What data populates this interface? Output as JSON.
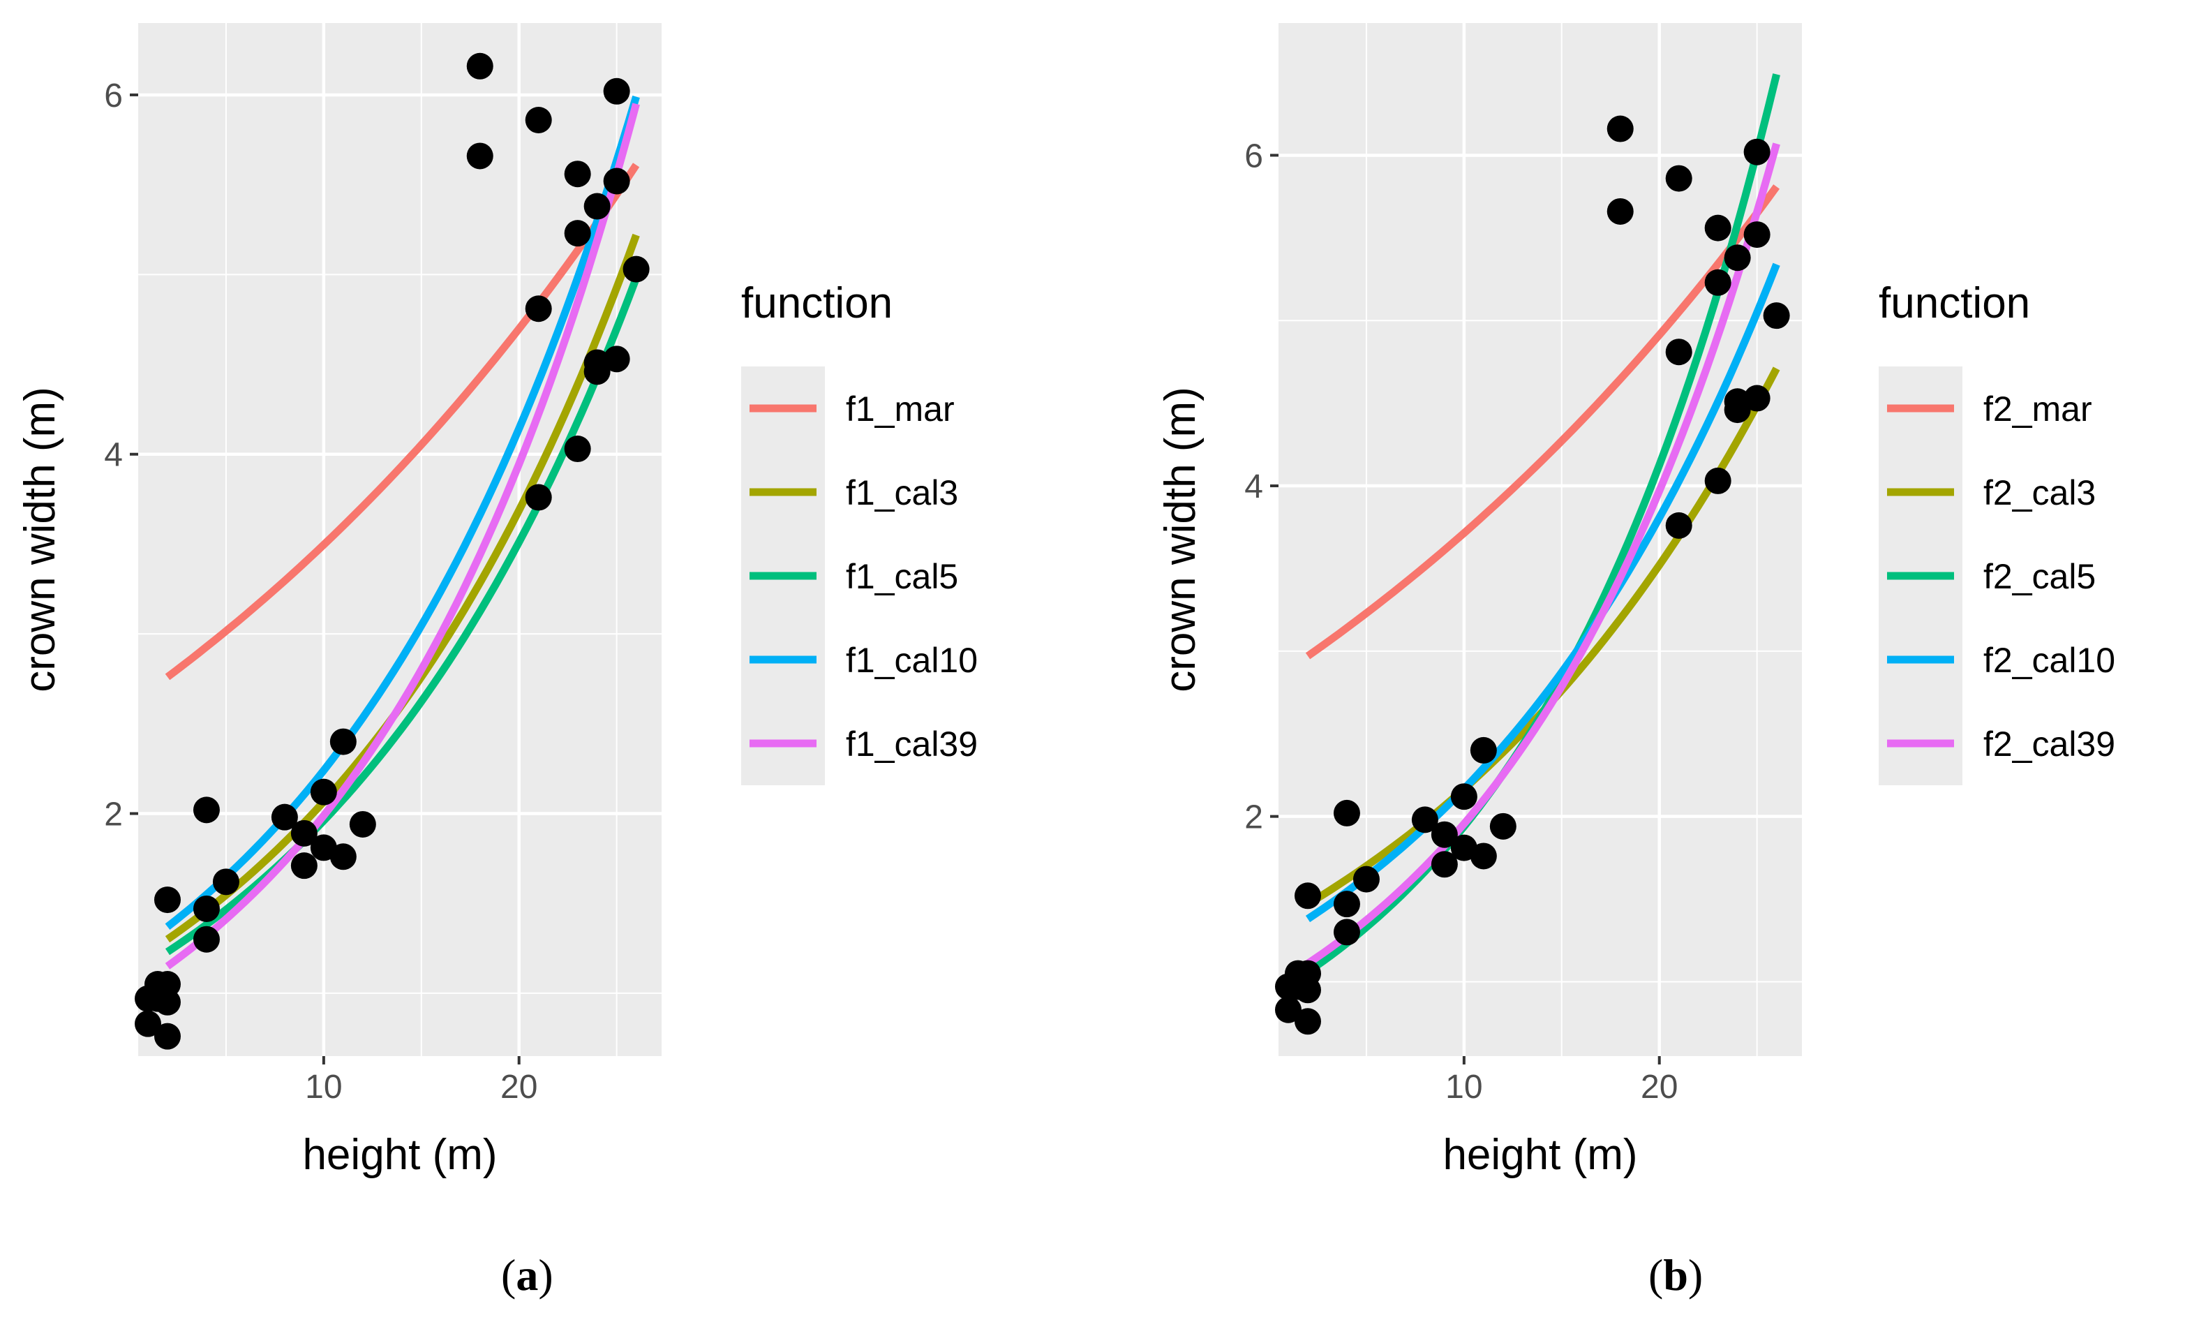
{
  "chart_data": [
    {
      "type": "line",
      "panel_label": "a",
      "xlabel": "height (m)",
      "ylabel": "crown width (m)",
      "xlim": [
        0.5,
        27.3
      ],
      "ylim": [
        0.65,
        6.4
      ],
      "x_ticks": [
        10,
        20
      ],
      "y_ticks": [
        2,
        4,
        6
      ],
      "legend_title": "function",
      "legend_position": "right",
      "series": [
        {
          "name": "f1_mar",
          "color": "#F8766D",
          "x": [
            2,
            26
          ],
          "y": [
            2.76,
            5.61
          ]
        },
        {
          "name": "f1_cal3",
          "color": "#A3A500",
          "x": [
            2,
            26
          ],
          "y": [
            1.3,
            5.22
          ]
        },
        {
          "name": "f1_cal5",
          "color": "#00BF7D",
          "x": [
            2,
            26
          ],
          "y": [
            1.23,
            4.98
          ]
        },
        {
          "name": "f1_cal10",
          "color": "#00B0F6",
          "x": [
            2,
            26
          ],
          "y": [
            1.37,
            5.99
          ]
        },
        {
          "name": "f1_cal39",
          "color": "#E76BF3",
          "x": [
            2,
            26
          ],
          "y": [
            1.15,
            5.95
          ]
        }
      ],
      "points": [
        [
          1,
          0.97
        ],
        [
          1,
          0.83
        ],
        [
          1.5,
          1.05
        ],
        [
          1.5,
          0.97
        ],
        [
          2,
          1.52
        ],
        [
          2,
          1.05
        ],
        [
          2,
          0.95
        ],
        [
          2,
          0.76
        ],
        [
          4,
          2.02
        ],
        [
          4,
          1.47
        ],
        [
          4,
          1.3
        ],
        [
          5,
          1.62
        ],
        [
          8,
          1.98
        ],
        [
          9,
          1.89
        ],
        [
          9,
          1.71
        ],
        [
          10,
          2.12
        ],
        [
          10,
          1.81
        ],
        [
          11,
          2.4
        ],
        [
          11,
          1.76
        ],
        [
          12,
          1.94
        ],
        [
          18,
          6.16
        ],
        [
          18,
          5.66
        ],
        [
          21,
          5.86
        ],
        [
          21,
          4.81
        ],
        [
          21,
          3.76
        ],
        [
          23,
          5.56
        ],
        [
          23,
          5.23
        ],
        [
          23,
          4.03
        ],
        [
          24,
          5.38
        ],
        [
          24,
          4.51
        ],
        [
          24,
          4.46
        ],
        [
          25,
          6.02
        ],
        [
          25,
          5.52
        ],
        [
          25,
          4.53
        ],
        [
          26,
          5.03
        ]
      ]
    },
    {
      "type": "line",
      "panel_label": "b",
      "xlabel": "height (m)",
      "ylabel": "crown width (m)",
      "xlim": [
        0.5,
        27.3
      ],
      "ylim": [
        0.55,
        6.8
      ],
      "x_ticks": [
        10,
        20
      ],
      "y_ticks": [
        2,
        4,
        6
      ],
      "legend_title": "function",
      "legend_position": "right",
      "series": [
        {
          "name": "f2_mar",
          "color": "#F8766D",
          "x": [
            2,
            26
          ],
          "y": [
            2.97,
            5.81
          ]
        },
        {
          "name": "f2_cal3",
          "color": "#A3A500",
          "x": [
            2,
            26
          ],
          "y": [
            1.47,
            4.71
          ]
        },
        {
          "name": "f2_cal5",
          "color": "#00BF7D",
          "x": [
            2,
            26
          ],
          "y": [
            1.06,
            6.49
          ]
        },
        {
          "name": "f2_cal10",
          "color": "#00B0F6",
          "x": [
            2,
            26
          ],
          "y": [
            1.38,
            5.34
          ]
        },
        {
          "name": "f2_cal39",
          "color": "#E76BF3",
          "x": [
            2,
            26
          ],
          "y": [
            1.11,
            6.07
          ]
        }
      ],
      "points": [
        [
          1,
          0.97
        ],
        [
          1,
          0.83
        ],
        [
          1.5,
          1.05
        ],
        [
          1.5,
          0.97
        ],
        [
          2,
          1.52
        ],
        [
          2,
          1.05
        ],
        [
          2,
          0.95
        ],
        [
          2,
          0.76
        ],
        [
          4,
          2.02
        ],
        [
          4,
          1.47
        ],
        [
          4,
          1.3
        ],
        [
          5,
          1.62
        ],
        [
          8,
          1.98
        ],
        [
          9,
          1.89
        ],
        [
          9,
          1.71
        ],
        [
          10,
          2.12
        ],
        [
          10,
          1.81
        ],
        [
          11,
          2.4
        ],
        [
          11,
          1.76
        ],
        [
          12,
          1.94
        ],
        [
          18,
          6.16
        ],
        [
          18,
          5.66
        ],
        [
          21,
          5.86
        ],
        [
          21,
          4.81
        ],
        [
          21,
          3.76
        ],
        [
          23,
          5.56
        ],
        [
          23,
          5.23
        ],
        [
          23,
          4.03
        ],
        [
          24,
          5.38
        ],
        [
          24,
          4.51
        ],
        [
          24,
          4.46
        ],
        [
          25,
          6.02
        ],
        [
          25,
          5.52
        ],
        [
          25,
          4.53
        ],
        [
          26,
          5.03
        ]
      ]
    }
  ],
  "captions": {
    "a": {
      "open": "(",
      "letter": "a",
      "close": ")"
    },
    "b": {
      "open": "(",
      "letter": "b",
      "close": ")"
    }
  }
}
